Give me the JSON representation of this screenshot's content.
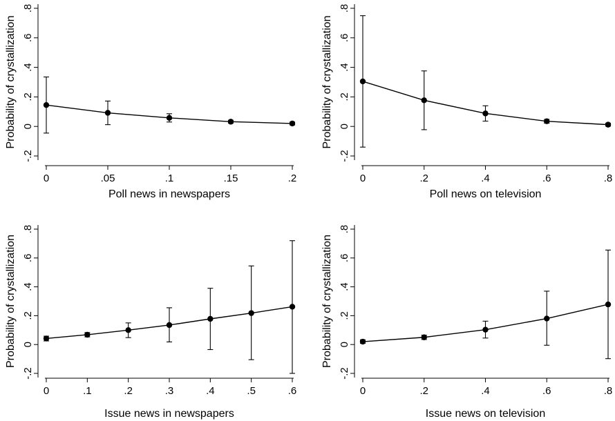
{
  "chart_data": [
    {
      "type": "line",
      "xlabel": "Poll news in newspapers",
      "ylabel": "Probability of crystallization",
      "xlim": [
        0,
        0.2
      ],
      "ylim": [
        -0.2,
        0.8
      ],
      "xticks": [
        "0",
        ".05",
        ".1",
        ".15",
        ".2"
      ],
      "xtick_values": [
        0,
        0.05,
        0.1,
        0.15,
        0.2
      ],
      "yticks": [
        "-.2",
        "0",
        ".2",
        ".4",
        ".6",
        ".8"
      ],
      "ytick_values": [
        -0.2,
        0,
        0.2,
        0.4,
        0.6,
        0.8
      ],
      "x": [
        0,
        0.05,
        0.1,
        0.15,
        0.2
      ],
      "y": [
        0.145,
        0.092,
        0.058,
        0.032,
        0.02
      ],
      "ci_low": [
        -0.045,
        0.012,
        0.03,
        0.022,
        0.01
      ],
      "ci_high": [
        0.335,
        0.172,
        0.086,
        0.042,
        0.03
      ]
    },
    {
      "type": "line",
      "xlabel": "Poll news on television",
      "ylabel": "Probability of crystallization",
      "xlim": [
        0,
        0.8
      ],
      "ylim": [
        -0.2,
        0.8
      ],
      "xticks": [
        "0",
        ".2",
        ".4",
        ".6",
        ".8"
      ],
      "xtick_values": [
        0,
        0.2,
        0.4,
        0.6,
        0.8
      ],
      "yticks": [
        "-.2",
        "0",
        ".2",
        ".4",
        ".6",
        ".8"
      ],
      "ytick_values": [
        -0.2,
        0,
        0.2,
        0.4,
        0.6,
        0.8
      ],
      "x": [
        0,
        0.2,
        0.4,
        0.6,
        0.8
      ],
      "y": [
        0.305,
        0.177,
        0.088,
        0.035,
        0.012
      ],
      "ci_low": [
        -0.14,
        -0.022,
        0.036,
        0.022,
        0.002
      ],
      "ci_high": [
        0.75,
        0.376,
        0.14,
        0.048,
        0.022
      ]
    },
    {
      "type": "line",
      "xlabel": "Issue news in newspapers",
      "ylabel": "Probability of crystallization",
      "xlim": [
        0,
        0.6
      ],
      "ylim": [
        -0.2,
        0.8
      ],
      "xticks": [
        "0",
        ".1",
        ".2",
        ".3",
        ".4",
        ".5",
        ".6"
      ],
      "xtick_values": [
        0,
        0.1,
        0.2,
        0.3,
        0.4,
        0.5,
        0.6
      ],
      "yticks": [
        "-.2",
        "0",
        ".2",
        ".4",
        ".6",
        ".8"
      ],
      "ytick_values": [
        -0.2,
        0,
        0.2,
        0.4,
        0.6,
        0.8
      ],
      "x": [
        0,
        0.1,
        0.2,
        0.3,
        0.4,
        0.5,
        0.6
      ],
      "y": [
        0.042,
        0.068,
        0.1,
        0.135,
        0.178,
        0.218,
        0.262
      ],
      "ci_low": [
        0.025,
        0.053,
        0.048,
        0.018,
        -0.035,
        -0.105,
        -0.2
      ],
      "ci_high": [
        0.058,
        0.083,
        0.15,
        0.255,
        0.39,
        0.545,
        0.72
      ]
    },
    {
      "type": "line",
      "xlabel": "Issue news on television",
      "ylabel": "Probability of crystallization",
      "xlim": [
        0,
        0.8
      ],
      "ylim": [
        -0.2,
        0.8
      ],
      "xticks": [
        "0",
        ".2",
        ".4",
        ".6",
        ".8"
      ],
      "xtick_values": [
        0,
        0.2,
        0.4,
        0.6,
        0.8
      ],
      "yticks": [
        "-.2",
        "0",
        ".2",
        ".4",
        ".6",
        ".8"
      ],
      "ytick_values": [
        -0.2,
        0,
        0.2,
        0.4,
        0.6,
        0.8
      ],
      "x": [
        0,
        0.2,
        0.4,
        0.6,
        0.8
      ],
      "y": [
        0.02,
        0.05,
        0.103,
        0.18,
        0.278
      ],
      "ci_low": [
        0.008,
        0.035,
        0.045,
        -0.005,
        -0.098
      ],
      "ci_high": [
        0.033,
        0.065,
        0.162,
        0.37,
        0.655
      ]
    }
  ]
}
